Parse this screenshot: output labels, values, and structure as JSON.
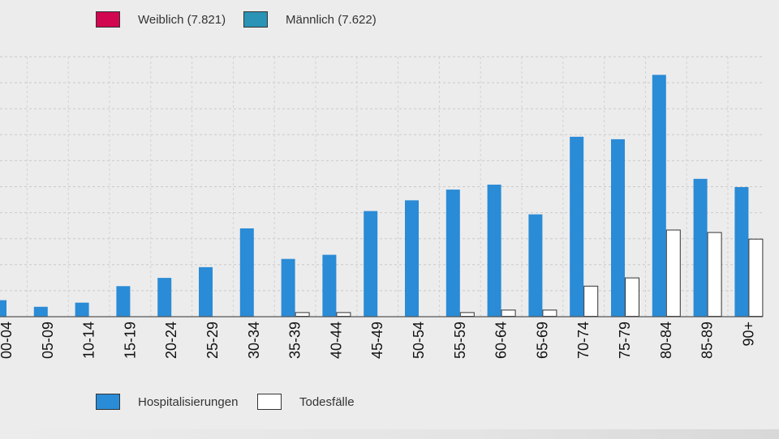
{
  "legend_top": {
    "female": {
      "label": "Weiblich (7.821)",
      "color": "#d1074f"
    },
    "male": {
      "label": "Männlich (7.622)",
      "color": "#2a93b6"
    }
  },
  "legend_bottom": {
    "hosp": {
      "label": "Hospitalisierungen",
      "color": "#2a8bd6"
    },
    "death": {
      "label": "Todesfälle",
      "color": "#ffffff"
    }
  },
  "chart_data": {
    "type": "bar",
    "categories": [
      "00-04",
      "05-09",
      "10-14",
      "15-19",
      "20-24",
      "25-29",
      "30-34",
      "35-39",
      "40-44",
      "45-49",
      "50-54",
      "55-59",
      "60-64",
      "65-69",
      "70-74",
      "75-79",
      "80-84",
      "85-89",
      "90+"
    ],
    "series": [
      {
        "name": "Hospitalisierungen",
        "color": "#2a8bd6",
        "values": [
          20,
          12,
          17,
          37,
          47,
          60,
          107,
          70,
          75,
          128,
          141,
          154,
          160,
          124,
          218,
          215,
          293,
          167,
          157
        ]
      },
      {
        "name": "Todesfälle",
        "color": "#ffffff",
        "values": [
          0,
          0,
          0,
          0,
          0,
          0,
          0,
          5,
          5,
          0,
          0,
          5,
          8,
          8,
          37,
          47,
          105,
          102,
          94
        ]
      }
    ],
    "ylim": [
      0,
      315
    ],
    "grid": true,
    "y_tick_step": 31.5,
    "legend_position": "bottom"
  }
}
